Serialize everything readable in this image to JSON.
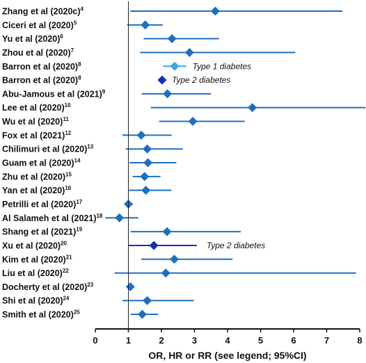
{
  "chart_data": {
    "type": "forest",
    "xlabel": "OR, HR or RR (see legend; 95%CI)",
    "xlim": [
      0,
      8
    ],
    "xticks": [
      0,
      1,
      2,
      3,
      4,
      5,
      6,
      7,
      8
    ],
    "reference_line": 1,
    "grid": false,
    "colors": {
      "default": "#1f6fbf",
      "type1": "#34a8e0",
      "type2": "#1a2fb0"
    },
    "studies": [
      {
        "name": "Zhang et al (2020c)",
        "ref": "4",
        "estimate": 3.63,
        "lower": 1.06,
        "upper": 7.48
      },
      {
        "name": "Ciceri et al (2020)",
        "ref": "5",
        "estimate": 1.51,
        "lower": 0.96,
        "upper": 2.04
      },
      {
        "name": "Yu et al (2020)",
        "ref": "6",
        "estimate": 2.32,
        "lower": 1.46,
        "upper": 3.74
      },
      {
        "name": "Zhou et al (2020)",
        "ref": "7",
        "estimate": 2.85,
        "lower": 1.35,
        "upper": 6.05
      },
      {
        "name": "Barron et al (2020)",
        "ref": "8",
        "estimate": 2.4,
        "lower": null,
        "upper": null,
        "kind": "type1"
      },
      {
        "name": "Barron et al (2020)",
        "ref": "8",
        "estimate": 2.02,
        "lower": null,
        "upper": null,
        "kind": "type2"
      },
      {
        "name": "Abu-Jamous et al (2021)",
        "ref": "9",
        "estimate": 2.18,
        "lower": 1.4,
        "upper": 3.5
      },
      {
        "name": "Lee et al (2020)",
        "ref": "10",
        "estimate": 4.75,
        "lower": 1.68,
        "upper": 8.2
      },
      {
        "name": "Wu et al  (2020)",
        "ref": "11",
        "estimate": 2.95,
        "lower": 1.93,
        "upper": 4.52
      },
      {
        "name": "Fox et al (2021)",
        "ref": "12",
        "estimate": 1.39,
        "lower": 0.82,
        "upper": 2.31
      },
      {
        "name": "Chilimuri et al (2020)",
        "ref": "13",
        "estimate": 1.57,
        "lower": 0.92,
        "upper": 2.65
      },
      {
        "name": "Guam et al (2020)",
        "ref": "14",
        "estimate": 1.59,
        "lower": 1.03,
        "upper": 2.45
      },
      {
        "name": "Zhu et al (2020)",
        "ref": "15",
        "estimate": 1.49,
        "lower": 1.13,
        "upper": 1.97
      },
      {
        "name": "Yan et al (2020)",
        "ref": "16",
        "estimate": 1.53,
        "lower": 1.02,
        "upper": 2.3
      },
      {
        "name": "Petrilli et al (2020)",
        "ref": "17",
        "estimate": 1.0,
        "lower": 0.88,
        "upper": 1.14
      },
      {
        "name": "Al Salameh et al (2021)",
        "ref": "18",
        "estimate": 0.73,
        "lower": 0.3,
        "upper": 1.3
      },
      {
        "name": "Shang et al (2021)",
        "ref": "19",
        "estimate": 2.17,
        "lower": 1.07,
        "upper": 4.4
      },
      {
        "name": "Xu et al (2020)",
        "ref": "20",
        "estimate": 1.77,
        "lower": 1.0,
        "upper": 3.07,
        "kind": "type2"
      },
      {
        "name": "Kim et al (2020)",
        "ref": "21",
        "estimate": 2.39,
        "lower": 1.39,
        "upper": 4.15
      },
      {
        "name": "Liu et al (2020)",
        "ref": "22",
        "estimate": 2.13,
        "lower": 0.58,
        "upper": 7.89
      },
      {
        "name": "Docherty et al (2020)",
        "ref": "23",
        "estimate": 1.06,
        "lower": 0.99,
        "upper": 1.14
      },
      {
        "name": "Shi et al (2020)",
        "ref": "24",
        "estimate": 1.57,
        "lower": 0.82,
        "upper": 2.98
      },
      {
        "name": "Smith et al (2020)",
        "ref": "25",
        "estimate": 1.42,
        "lower": 1.07,
        "upper": 1.9
      }
    ],
    "annotations": [
      {
        "text": "Type 1 diabetes",
        "row": 4,
        "x": 2.4,
        "marker": "type1",
        "segment": [
          2.05,
          2.75
        ]
      },
      {
        "text": "Type 2 diabetes",
        "row": 5,
        "x": 2.02,
        "marker": "type2"
      },
      {
        "text": "Type 2 diabetes",
        "row": 17,
        "x": 3.07,
        "marker": "type2"
      }
    ]
  }
}
